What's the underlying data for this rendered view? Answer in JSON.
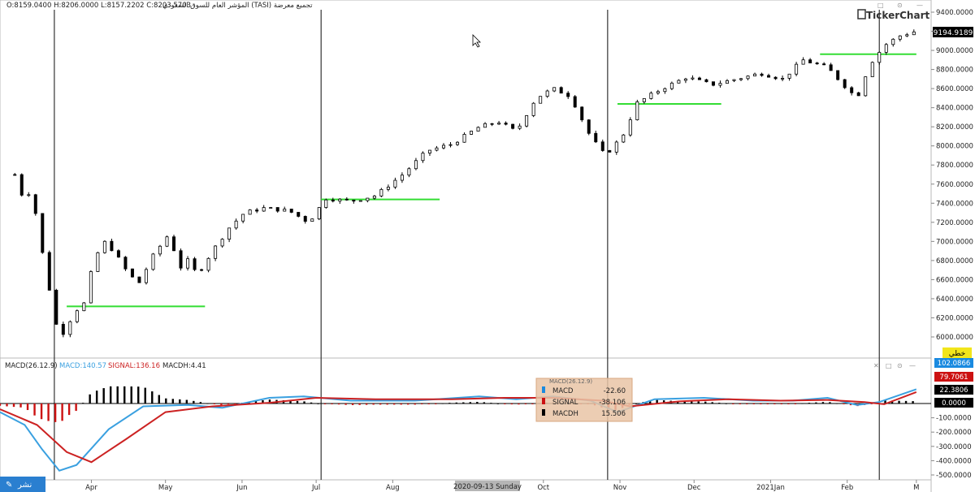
{
  "header": {
    "symbol_info": "المؤشر العام للسوق السعودي (TASI) تجميع معرضة",
    "ohlc": "O:8159.0400  H:8206.0000  L:8157.2202  C:8203.5703"
  },
  "brand": "TickerChart",
  "price_panel": {
    "last_price_tag": "9194.9189",
    "y_ticks": [
      "9400.0000",
      "9200.0000",
      "9000.0000",
      "8800.0000",
      "8600.0000",
      "8400.0000",
      "8200.0000",
      "8000.0000",
      "7800.0000",
      "7600.0000",
      "7400.0000",
      "7200.0000",
      "7000.0000",
      "6800.0000",
      "6600.0000",
      "6400.0000",
      "6200.0000",
      "6000.0000"
    ],
    "linear_label": "خطي"
  },
  "macd_panel": {
    "title": "MACD(26.12.9)",
    "macd_label": "MACD:140.57",
    "signal_label": "SIGNAL:136.16",
    "macdh_label": "MACDH:4.41",
    "y_ticks": [
      "-100.0000",
      "-200.0000",
      "-300.0000",
      "-400.0000",
      "-500.0000"
    ],
    "value_tags": [
      "102.0866",
      "79.7061",
      "22.3806",
      "0.0000"
    ],
    "tooltip": {
      "header": "MACD(26.12.9)",
      "rows": [
        {
          "label": "MACD",
          "value": "-22.60"
        },
        {
          "label": "SIGNAL",
          "value": "-38.106"
        },
        {
          "label": "MACDH",
          "value": "15.506"
        }
      ]
    }
  },
  "x_axis": {
    "labels": [
      "Apr",
      "May",
      "Jun",
      "Jul",
      "Aug",
      "Oct",
      "Nov",
      "Dec",
      "2021Jan",
      "Feb",
      "M"
    ],
    "cursor_label": "2020-09-13 Sunday"
  },
  "share_button": "نشر",
  "colors": {
    "up": "#ffffff",
    "down": "#000000",
    "support_line": "#33dd33",
    "macd": "#3aa0e0",
    "signal": "#cc2222",
    "hist_pos": "#000000",
    "hist_neg": "#cc1111",
    "share_bg": "#2a7fd0"
  },
  "chart_data": {
    "type": "candlestick",
    "title": "المؤشر العام للسوق السعودي (TASI)",
    "ohlc_last": {
      "open": 8159.04,
      "high": 8206.0,
      "low": 8157.2202,
      "close": 8203.5703
    },
    "price_range": [
      5900,
      9450
    ],
    "close_series": [
      {
        "x": "2020-03-01",
        "close": 7700
      },
      {
        "x": "2020-03-04",
        "close": 7480
      },
      {
        "x": "2020-03-08",
        "close": 7520
      },
      {
        "x": "2020-03-11",
        "close": 7040
      },
      {
        "x": "2020-03-15",
        "close": 6500
      },
      {
        "x": "2020-03-17",
        "close": 6230
      },
      {
        "x": "2020-03-19",
        "close": 5980
      },
      {
        "x": "2020-03-22",
        "close": 6100
      },
      {
        "x": "2020-03-25",
        "close": 6260
      },
      {
        "x": "2020-03-29",
        "close": 6350
      },
      {
        "x": "2020-04-02",
        "close": 6800
      },
      {
        "x": "2020-04-06",
        "close": 7000
      },
      {
        "x": "2020-04-10",
        "close": 6900
      },
      {
        "x": "2020-04-15",
        "close": 6700
      },
      {
        "x": "2020-04-20",
        "close": 6550
      },
      {
        "x": "2020-04-26",
        "close": 6850
      },
      {
        "x": "2020-05-03",
        "close": 7100
      },
      {
        "x": "2020-05-06",
        "close": 6700
      },
      {
        "x": "2020-05-10",
        "close": 6800
      },
      {
        "x": "2020-05-14",
        "close": 6650
      },
      {
        "x": "2020-05-20",
        "close": 6900
      },
      {
        "x": "2020-05-27",
        "close": 7150
      },
      {
        "x": "2020-06-02",
        "close": 7300
      },
      {
        "x": "2020-06-10",
        "close": 7350
      },
      {
        "x": "2020-06-20",
        "close": 7320
      },
      {
        "x": "2020-06-28",
        "close": 7200
      },
      {
        "x": "2020-07-05",
        "close": 7450
      },
      {
        "x": "2020-07-15",
        "close": 7420
      },
      {
        "x": "2020-07-25",
        "close": 7480
      },
      {
        "x": "2020-08-05",
        "close": 7700
      },
      {
        "x": "2020-08-15",
        "close": 7950
      },
      {
        "x": "2020-08-25",
        "close": 8020
      },
      {
        "x": "2020-09-05",
        "close": 8200
      },
      {
        "x": "2020-09-13",
        "close": 8250
      },
      {
        "x": "2020-09-20",
        "close": 8150
      },
      {
        "x": "2020-09-28",
        "close": 8500
      },
      {
        "x": "2020-10-05",
        "close": 8600
      },
      {
        "x": "2020-10-12",
        "close": 8520
      },
      {
        "x": "2020-10-20",
        "close": 8100
      },
      {
        "x": "2020-10-26",
        "close": 7900
      },
      {
        "x": "2020-11-02",
        "close": 8100
      },
      {
        "x": "2020-11-08",
        "close": 8450
      },
      {
        "x": "2020-11-18",
        "close": 8600
      },
      {
        "x": "2020-11-28",
        "close": 8720
      },
      {
        "x": "2020-12-08",
        "close": 8640
      },
      {
        "x": "2020-12-18",
        "close": 8700
      },
      {
        "x": "2020-12-28",
        "close": 8760
      },
      {
        "x": "2021-01-06",
        "close": 8700
      },
      {
        "x": "2021-01-14",
        "close": 8900
      },
      {
        "x": "2021-01-24",
        "close": 8820
      },
      {
        "x": "2021-02-01",
        "close": 8600
      },
      {
        "x": "2021-02-05",
        "close": 8500
      },
      {
        "x": "2021-02-10",
        "close": 8850
      },
      {
        "x": "2021-02-16",
        "close": 9050
      },
      {
        "x": "2021-02-22",
        "close": 9150
      },
      {
        "x": "2021-02-28",
        "close": 9195
      }
    ],
    "support_levels": [
      6320,
      7440,
      8440,
      8960
    ],
    "indicators": {
      "MACD": {
        "params": "26.12.9",
        "macd": 140.57,
        "signal": 136.16,
        "macdh": 4.41
      },
      "macd_range": [
        -520,
        260
      ]
    },
    "x_ticks": [
      "Apr",
      "May",
      "Jun",
      "Jul",
      "Aug",
      "Oct",
      "Nov",
      "Dec",
      "2021Jan",
      "Feb",
      "M"
    ]
  }
}
